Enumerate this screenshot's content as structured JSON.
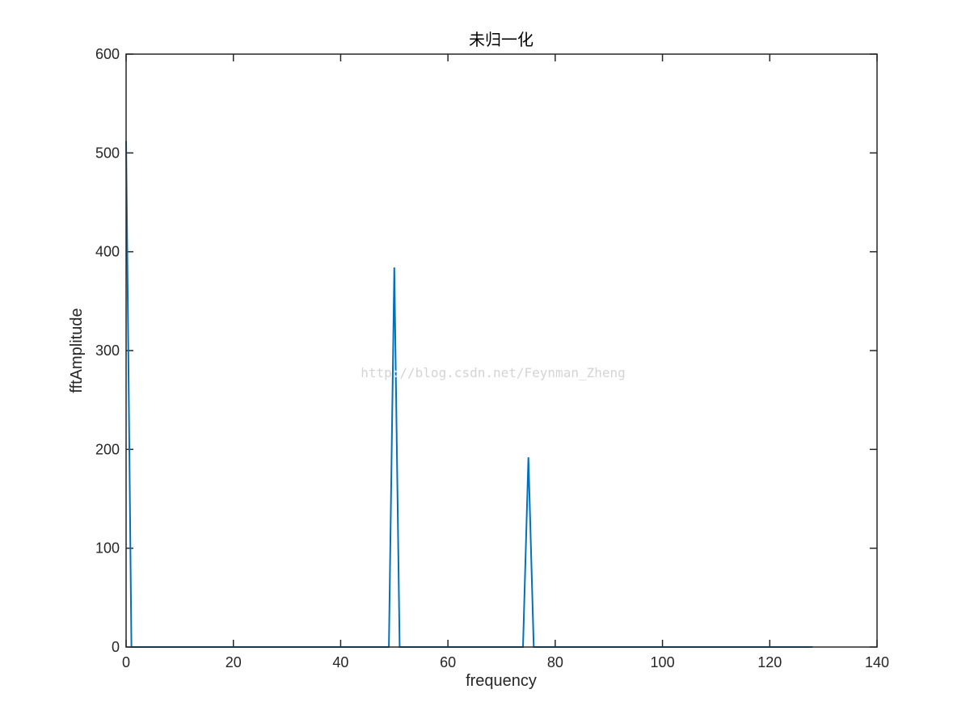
{
  "chart_data": {
    "type": "line",
    "title": "未归一化",
    "xlabel": "frequency",
    "ylabel": "fftAmplitude",
    "xlim": [
      0,
      140
    ],
    "ylim": [
      0,
      600
    ],
    "xticks": [
      0,
      20,
      40,
      60,
      80,
      100,
      120,
      140
    ],
    "yticks": [
      0,
      100,
      200,
      300,
      400,
      500,
      600
    ],
    "grid": false,
    "box": true,
    "line_color": "#0072bd",
    "x": [
      0,
      1,
      2,
      3,
      4,
      5,
      6,
      7,
      8,
      9,
      10,
      11,
      12,
      13,
      14,
      15,
      16,
      17,
      18,
      19,
      20,
      21,
      22,
      23,
      24,
      25,
      26,
      27,
      28,
      29,
      30,
      31,
      32,
      33,
      34,
      35,
      36,
      37,
      38,
      39,
      40,
      41,
      42,
      43,
      44,
      45,
      46,
      47,
      48,
      49,
      50,
      51,
      52,
      53,
      54,
      55,
      56,
      57,
      58,
      59,
      60,
      61,
      62,
      63,
      64,
      65,
      66,
      67,
      68,
      69,
      70,
      71,
      72,
      73,
      74,
      75,
      76,
      77,
      78,
      79,
      80,
      81,
      82,
      83,
      84,
      85,
      86,
      87,
      88,
      89,
      90,
      91,
      92,
      93,
      94,
      95,
      96,
      97,
      98,
      99,
      100,
      101,
      102,
      103,
      104,
      105,
      106,
      107,
      108,
      109,
      110,
      111,
      112,
      113,
      114,
      115,
      116,
      117,
      118,
      119,
      120,
      121,
      122,
      123,
      124,
      125,
      126,
      127,
      128
    ],
    "y": [
      512,
      0,
      0,
      0,
      0,
      0,
      0,
      0,
      0,
      0,
      0,
      0,
      0,
      0,
      0,
      0,
      0,
      0,
      0,
      0,
      0,
      0,
      0,
      0,
      0,
      0,
      0,
      0,
      0,
      0,
      0,
      0,
      0,
      0,
      0,
      0,
      0,
      0,
      0,
      0,
      0,
      0,
      0,
      0,
      0,
      0,
      0,
      0,
      0,
      0,
      384,
      0,
      0,
      0,
      0,
      0,
      0,
      0,
      0,
      0,
      0,
      0,
      0,
      0,
      0,
      0,
      0,
      0,
      0,
      0,
      0,
      0,
      0,
      0,
      0,
      192,
      0,
      0,
      0,
      0,
      0,
      0,
      0,
      0,
      0,
      0,
      0,
      0,
      0,
      0,
      0,
      0,
      0,
      0,
      0,
      0,
      0,
      0,
      0,
      0,
      0,
      0,
      0,
      0,
      0,
      0,
      0,
      0,
      0,
      0,
      0,
      0,
      0,
      0,
      0,
      0,
      0,
      0,
      0,
      0,
      0,
      0,
      0,
      0,
      0,
      0,
      0,
      0,
      0
    ]
  },
  "watermark": "http://blog.csdn.net/Feynman_Zheng"
}
